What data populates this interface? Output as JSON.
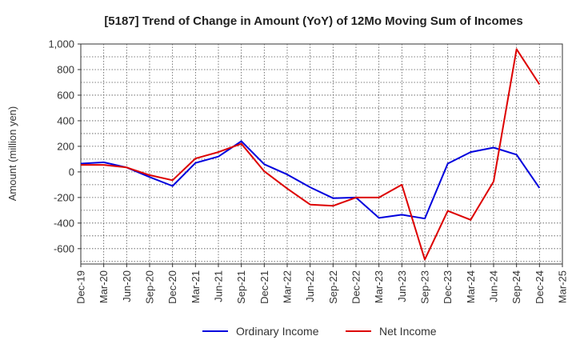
{
  "chart_data": {
    "type": "line",
    "title": "[5187]  Trend of Change in Amount (YoY) of 12Mo Moving Sum of Incomes",
    "xlabel": "",
    "ylabel": "Amount (million yen)",
    "ylim": [
      -720,
      1000
    ],
    "yticks": [
      1000,
      800,
      600,
      400,
      200,
      0,
      -200,
      -400,
      -600
    ],
    "ytick_labels": [
      "1,000",
      "800",
      "600",
      "400",
      "200",
      "0",
      "-200",
      "-400",
      "-600"
    ],
    "grid": true,
    "legend_position": "bottom",
    "categories": [
      "Dec-19",
      "Mar-20",
      "Jun-20",
      "Sep-20",
      "Dec-20",
      "Mar-21",
      "Jun-21",
      "Sep-21",
      "Dec-21",
      "Mar-22",
      "Jun-22",
      "Sep-22",
      "Dec-22",
      "Mar-23",
      "Jun-23",
      "Sep-23",
      "Dec-23",
      "Mar-24",
      "Jun-24",
      "Sep-24",
      "Dec-24",
      "Mar-25"
    ],
    "series": [
      {
        "name": "Ordinary Income",
        "color": "#0000dd",
        "values": [
          65,
          75,
          35,
          -40,
          -110,
          70,
          120,
          240,
          60,
          -20,
          -120,
          -205,
          -200,
          -360,
          -335,
          -365,
          65,
          155,
          190,
          135,
          -125,
          null
        ]
      },
      {
        "name": "Net Income",
        "color": "#dd0000",
        "values": [
          55,
          55,
          35,
          -25,
          -65,
          105,
          155,
          220,
          5,
          -130,
          -255,
          -265,
          -200,
          -200,
          -100,
          -685,
          -305,
          -375,
          -75,
          960,
          685,
          null
        ]
      }
    ]
  }
}
